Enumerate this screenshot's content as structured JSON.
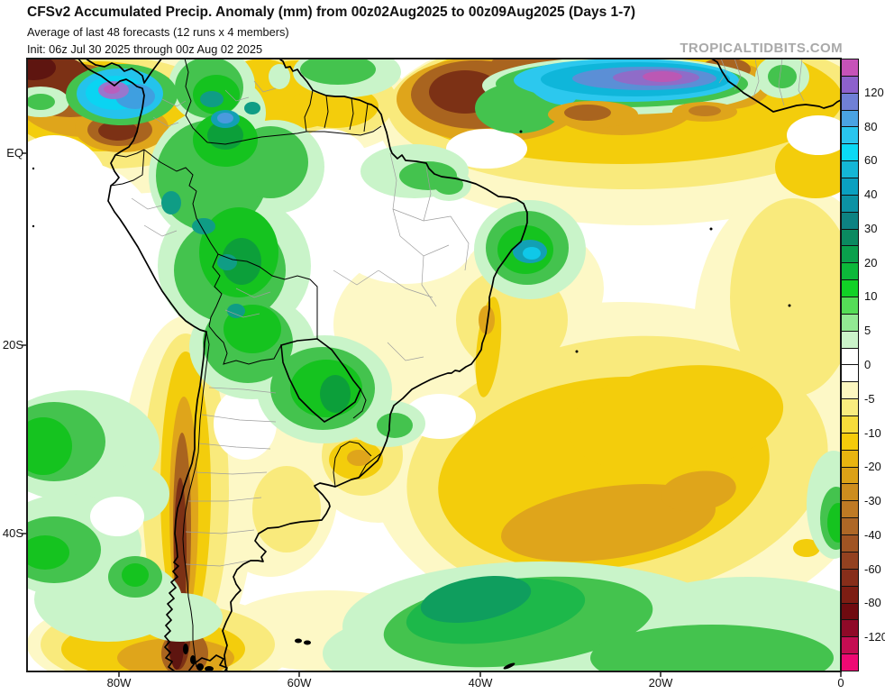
{
  "header": {
    "title": "CFSv2 Accumulated Precip. Anomaly (mm) from 00z02Aug2025 to 00z09Aug2025 (Days 1-7)",
    "subtitle": "Average of last 48 forecasts (12 runs x 4 members)",
    "init_line": "Init: 06z Jul 30 2025 through 00z Aug 02 2025",
    "watermark": "TROPICALTIDBITS.COM"
  },
  "map": {
    "y_axis_labels": [
      "EQ",
      "20S",
      "40S"
    ],
    "x_axis_labels": [
      "80W",
      "60W",
      "40W",
      "20W",
      "0"
    ]
  },
  "colorbar": {
    "labels": [
      "120",
      "80",
      "60",
      "40",
      "30",
      "20",
      "10",
      "5",
      "0",
      "-5",
      "-10",
      "-20",
      "-30",
      "-40",
      "-60",
      "-80",
      "-120"
    ],
    "cell_colors": [
      "#c653b8",
      "#8d61cc",
      "#7080d6",
      "#4aa3e2",
      "#29c6ee",
      "#0bd9f5",
      "#14b6d6",
      "#0aa0c0",
      "#0c92a4",
      "#0d8282",
      "#0b8a60",
      "#0aa04c",
      "#0cb83a",
      "#11d226",
      "#55dd57",
      "#92e993",
      "#cbf4ca",
      "#ffffff",
      "#ffffff",
      "#fcf7c0",
      "#f9ec7f",
      "#f7dc3b",
      "#f5cb0b",
      "#e8b410",
      "#dba117",
      "#cd8d1e",
      "#bf7a24",
      "#ae6726",
      "#a05423",
      "#934120",
      "#872e1a",
      "#7d1d13",
      "#6f0b10",
      "#8f0a28",
      "#c40d52",
      "#ee0973"
    ]
  },
  "chart_data": {
    "type": "heatmap",
    "title": "CFSv2 Accumulated Precip. Anomaly (mm) from 00z02Aug2025 to 00z09Aug2025 (Days 1-7)",
    "variable": "Accumulated precipitation anomaly",
    "units": "mm",
    "region": "South America and adjacent Pacific/Atlantic oceans, ~10N to 55S, 90W to 0",
    "x_ticks": [
      "80W",
      "60W",
      "40W",
      "20W",
      "0"
    ],
    "y_ticks": [
      "EQ",
      "20S",
      "40S"
    ],
    "legend_position": "right",
    "scale_levels": [
      120,
      80,
      60,
      40,
      30,
      20,
      10,
      5,
      0,
      -5,
      -10,
      -20,
      -30,
      -40,
      -60,
      -80,
      -120
    ],
    "features": [
      {
        "region": "Panama / SW Caribbean (~80W 9N)",
        "sign": "positive",
        "peak_mm": ">120"
      },
      {
        "region": "Far NW corner, E Pacific (~89W 9N)",
        "sign": "negative",
        "peak_mm": "<-80"
      },
      {
        "region": "NW Colombia coast (~76W 3N)",
        "sign": "negative",
        "peak_mm": "-40 to -60"
      },
      {
        "region": "Western Amazon (Colombia/Peru/NW Brazil)",
        "sign": "positive",
        "peak_mm": "30 to 40"
      },
      {
        "region": "Venezuela / Guianas",
        "sign": "negative",
        "peak_mm": "-10 to -20"
      },
      {
        "region": "Equatorial Atlantic ITCZ band (40W-10W, 2-8N)",
        "sign": "positive",
        "peak_mm": ">120"
      },
      {
        "region": "Tropical N Atlantic (50W-30W, ~4N)",
        "sign": "negative",
        "peak_mm": "-40 to -60"
      },
      {
        "region": "NE Brazil coast (~35W 10S)",
        "sign": "positive",
        "peak_mm": "40 to 60"
      },
      {
        "region": "Paraguay / S Brazil",
        "sign": "positive",
        "peak_mm": "20 to 40"
      },
      {
        "region": "Uruguay / Rio Grande do Sul",
        "sign": "negative",
        "peak_mm": "-10 to -20"
      },
      {
        "region": "Peru Andes (~76W 16S)",
        "sign": "negative",
        "peak_mm": "-10 to -20"
      },
      {
        "region": "Chilean Andes coast (70-74W, 25-55S)",
        "sign": "negative",
        "peak_mm": "<-80"
      },
      {
        "region": "Subtropical S Atlantic (55W-10W, 25-40S)",
        "sign": "negative",
        "peak_mm": "-20 to -30"
      },
      {
        "region": "SE Pacific (85-90W, 30-45S)",
        "sign": "positive",
        "peak_mm": "10 to 20"
      },
      {
        "region": "Far S Atlantic (50W-5W, 45-55S)",
        "sign": "positive",
        "peak_mm": "20 to 30"
      },
      {
        "region": "Gulf of Guinea / W Africa",
        "sign": "mixed",
        "peak_mm": "-20 to +20"
      }
    ]
  }
}
